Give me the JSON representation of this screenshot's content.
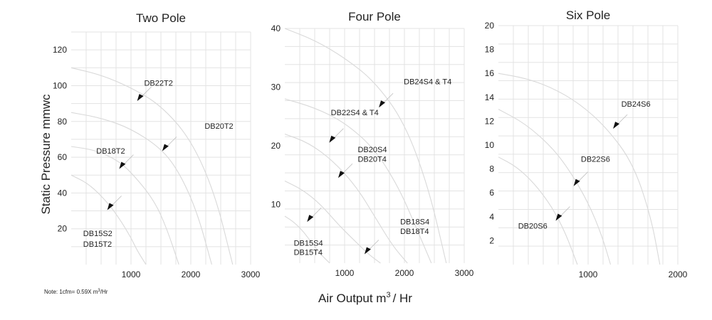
{
  "chart_data": [
    {
      "type": "line",
      "title": "Two Pole",
      "xlim": [
        0,
        3000
      ],
      "ylim": [
        0,
        130
      ],
      "xticks": [
        1000,
        2000,
        3000
      ],
      "yticks": [
        20,
        40,
        60,
        80,
        100,
        120
      ],
      "grid": true,
      "series": [
        {
          "name": "DB22T2",
          "x": [
            0,
            500,
            1000,
            1500,
            2000,
            2400,
            2700
          ],
          "y": [
            110,
            106,
            99,
            89,
            70,
            40,
            0
          ]
        },
        {
          "name": "DB20T2",
          "x": [
            0,
            500,
            1000,
            1500,
            1800,
            2100,
            2350
          ],
          "y": [
            85,
            82,
            76,
            65,
            52,
            30,
            0
          ]
        },
        {
          "name": "DB18T2",
          "x": [
            0,
            400,
            800,
            1100,
            1400,
            1600,
            1800
          ],
          "y": [
            66,
            64,
            58,
            48,
            35,
            20,
            0
          ]
        },
        {
          "name": "DB15S2 / DB15T2",
          "x": [
            0,
            300,
            600,
            800,
            1000,
            1100,
            1250
          ],
          "y": [
            50,
            45,
            35,
            26,
            15,
            8,
            0
          ]
        }
      ],
      "labels": [
        {
          "text": "DB22T2",
          "x": 1220,
          "y": 100
        },
        {
          "text": "DB20T2",
          "x": 2230,
          "y": 76
        },
        {
          "text": "DB18T2",
          "x": 420,
          "y": 62
        },
        {
          "text": "DB15S2",
          "x": 200,
          "y": 16
        },
        {
          "text": "DB15T2",
          "x": 200,
          "y": 10
        }
      ],
      "arrows": [
        {
          "x": 1150,
          "y": 93
        },
        {
          "x": 1570,
          "y": 65
        },
        {
          "x": 850,
          "y": 55
        },
        {
          "x": 650,
          "y": 32
        }
      ]
    },
    {
      "type": "line",
      "title": "Four Pole",
      "xlim": [
        0,
        3000
      ],
      "ylim": [
        0,
        40
      ],
      "xticks": [
        1000,
        2000,
        3000
      ],
      "yticks": [
        10,
        20,
        30,
        40
      ],
      "grid": true,
      "series": [
        {
          "name": "DB24S4 & T4",
          "x": [
            0,
            500,
            1000,
            1500,
            2000,
            2400,
            2700
          ],
          "y": [
            40,
            38,
            35,
            31,
            24,
            13,
            0
          ]
        },
        {
          "name": "DB22S4 & T4",
          "x": [
            0,
            500,
            1000,
            1500,
            1900,
            2200,
            2450
          ],
          "y": [
            28,
            26.5,
            24,
            19.5,
            13,
            6,
            0
          ]
        },
        {
          "name": "DB20S4 / DB20T4",
          "x": [
            0,
            400,
            800,
            1200,
            1500,
            1800,
            2050
          ],
          "y": [
            22,
            20.5,
            17.5,
            13,
            8,
            3,
            0
          ]
        },
        {
          "name": "DB18S4 / DB18T4",
          "x": [
            0,
            300,
            600,
            900,
            1200,
            1400,
            1600
          ],
          "y": [
            14,
            12.5,
            10,
            6.5,
            3.5,
            1.5,
            0
          ]
        },
        {
          "name": "DB15S4 / DB15T4",
          "x": [
            0,
            150,
            300,
            450,
            600,
            750
          ],
          "y": [
            8,
            7,
            5.5,
            3.5,
            1.5,
            0
          ]
        }
      ],
      "labels": [
        {
          "text": "DB24S4 & T4",
          "x": 1990,
          "y": 30.5
        },
        {
          "text": "DB22S4 & T4",
          "x": 770,
          "y": 25.2
        },
        {
          "text": "DB20S4",
          "x": 1220,
          "y": 18.9
        },
        {
          "text": "DB20T4",
          "x": 1220,
          "y": 17.3
        },
        {
          "text": "DB18S4",
          "x": 1930,
          "y": 6.6
        },
        {
          "text": "DB18T4",
          "x": 1930,
          "y": 5
        },
        {
          "text": "DB15S4",
          "x": 150,
          "y": 3
        },
        {
          "text": "DB15T4",
          "x": 150,
          "y": 1.4
        }
      ],
      "arrows": [
        {
          "x": 1620,
          "y": 27
        },
        {
          "x": 790,
          "y": 21
        },
        {
          "x": 940,
          "y": 15
        },
        {
          "x": 420,
          "y": 7.5
        },
        {
          "x": 1380,
          "y": 2
        }
      ]
    },
    {
      "type": "line",
      "title": "Six Pole",
      "xlim": [
        0,
        2000
      ],
      "ylim": [
        0,
        20
      ],
      "xticks": [
        1000,
        2000
      ],
      "yticks": [
        2,
        4,
        6,
        8,
        10,
        12,
        14,
        16,
        18,
        20
      ],
      "grid": true,
      "series": [
        {
          "name": "DB24S6",
          "x": [
            0,
            300,
            600,
            900,
            1200,
            1500,
            1700,
            1800
          ],
          "y": [
            16,
            15.6,
            14.8,
            13.5,
            11.5,
            8.5,
            4,
            0
          ]
        },
        {
          "name": "DB22S6",
          "x": [
            0,
            300,
            600,
            800,
            1000,
            1150,
            1250
          ],
          "y": [
            13,
            11.8,
            9.8,
            7.8,
            5.2,
            2.5,
            0
          ]
        },
        {
          "name": "DB20S6",
          "x": [
            0,
            200,
            400,
            600,
            750,
            880
          ],
          "y": [
            9,
            8.2,
            6.8,
            4.8,
            2.6,
            0
          ]
        }
      ],
      "labels": [
        {
          "text": "DB24S6",
          "x": 1370,
          "y": 13.2
        },
        {
          "text": "DB22S6",
          "x": 920,
          "y": 8.6
        },
        {
          "text": "DB20S6",
          "x": 220,
          "y": 3
        }
      ],
      "arrows": [
        {
          "x": 1310,
          "y": 11.6
        },
        {
          "x": 870,
          "y": 6.8
        },
        {
          "x": 670,
          "y": 3.9
        }
      ]
    }
  ],
  "axes": {
    "ylabel": "Static Pressure mmwc",
    "xlabel_main": "Air Output m",
    "xlabel_sup": "3",
    "xlabel_tail": "/ Hr"
  },
  "note": {
    "prefix": "Note: 1cfm= 0.59X m",
    "sup": "3",
    "suffix": "/Hr"
  }
}
